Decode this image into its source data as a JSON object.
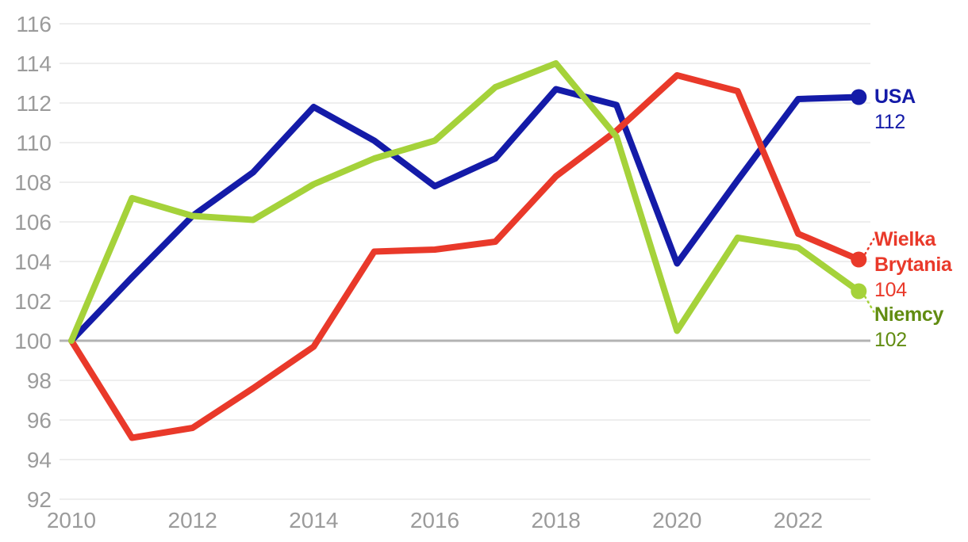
{
  "chart_data": {
    "type": "line",
    "title": "",
    "xlabel": "",
    "ylabel": "",
    "x": [
      2010,
      2011,
      2012,
      2013,
      2014,
      2015,
      2016,
      2017,
      2018,
      2019,
      2020,
      2021,
      2022,
      2023
    ],
    "xticks": [
      2010,
      2012,
      2014,
      2016,
      2018,
      2020,
      2022
    ],
    "yticks": [
      92,
      94,
      96,
      98,
      100,
      102,
      104,
      106,
      108,
      110,
      112,
      114,
      116
    ],
    "ylim": [
      92,
      116
    ],
    "xlim": [
      2010,
      2023
    ],
    "baseline": 100,
    "grid": "horizontal",
    "legend_position": "right-end-labels",
    "colors": {
      "axis_text": "#9b9b9b",
      "grid_line": "#e8e8e8",
      "baseline_line": "#b3b3b3",
      "background": "#ffffff"
    },
    "series": [
      {
        "name": "USA",
        "end_label": "112",
        "color": "#141ba8",
        "label_color": "#141ba8",
        "leader": "none",
        "values": [
          100,
          103.2,
          106.3,
          108.5,
          111.8,
          110.1,
          107.8,
          109.2,
          112.7,
          111.9,
          103.9,
          108.1,
          112.2,
          112.3
        ]
      },
      {
        "name": "Wielka Brytania",
        "end_label": "104",
        "color": "#e9392a",
        "label_color": "#e9392a",
        "leader": "up",
        "values": [
          100,
          95.1,
          95.6,
          97.6,
          99.7,
          104.5,
          104.6,
          105.0,
          108.3,
          110.6,
          113.4,
          112.6,
          105.4,
          104.1
        ]
      },
      {
        "name": "Niemcy",
        "end_label": "102",
        "color": "#a5d23a",
        "label_color": "#618c11",
        "leader": "down",
        "values": [
          100,
          107.2,
          106.3,
          106.1,
          107.9,
          109.2,
          110.1,
          112.8,
          114.0,
          110.3,
          100.5,
          105.2,
          104.7,
          102.5
        ]
      }
    ]
  }
}
